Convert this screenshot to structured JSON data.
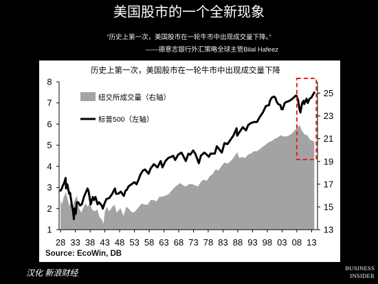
{
  "slide": {
    "title": "美国股市的一个全新现象",
    "quote": "“历史上第一次，美国股市在一轮牛市中出现成交量下降。”",
    "attribution": "——德意志银行外汇策略全球主管Bilal Hafeez",
    "footer_left": "汉化 新浪财经",
    "logo": {
      "line1": "BUSINESS",
      "line2": "INSIDER"
    }
  },
  "colors": {
    "background": "#000000",
    "text": "#ffffff",
    "panel": "#ffffff",
    "volume": "#a3a3a3",
    "index": "#000000",
    "highlight": "#e2231a"
  },
  "chart_data": {
    "type": "line",
    "title": "历史上第一次，美国股市在一轮牛市中出现成交量下降",
    "source": "Source: EcoWin, DB",
    "legend": "top-left",
    "grid": false,
    "xlim": [
      1927.5,
      2015
    ],
    "x_ticks": [
      1928,
      1933,
      1938,
      1943,
      1948,
      1953,
      1958,
      1963,
      1968,
      1973,
      1978,
      1983,
      1988,
      1993,
      1998,
      2003,
      2008,
      2013
    ],
    "x_tick_labels": [
      "28",
      "33",
      "38",
      "43",
      "48",
      "53",
      "58",
      "63",
      "68",
      "73",
      "78",
      "83",
      "88",
      "93",
      "98",
      "03",
      "08",
      "13"
    ],
    "y_left": {
      "lim": [
        1,
        8
      ],
      "ticks": [
        1,
        2,
        3,
        4,
        5,
        6,
        7,
        8
      ]
    },
    "y_right": {
      "lim": [
        13,
        26
      ],
      "ticks": [
        13,
        15,
        17,
        19,
        21,
        23,
        25
      ]
    },
    "series": [
      {
        "name": "纽交所成交量（右轴）",
        "kind": "area",
        "axis": "right",
        "color": "#a3a3a3",
        "points": [
          [
            1928.0,
            15.6
          ],
          [
            1928.5,
            15.2
          ],
          [
            1929.0,
            15.8
          ],
          [
            1929.8,
            16.3
          ],
          [
            1930.3,
            15.8
          ],
          [
            1930.9,
            15.1
          ],
          [
            1931.5,
            15.4
          ],
          [
            1932.0,
            14.8
          ],
          [
            1932.6,
            15.5
          ],
          [
            1933.5,
            16.0
          ],
          [
            1934.2,
            14.9
          ],
          [
            1935.0,
            14.5
          ],
          [
            1935.8,
            15.0
          ],
          [
            1936.5,
            15.3
          ],
          [
            1937.2,
            15.0
          ],
          [
            1937.9,
            15.4
          ],
          [
            1938.6,
            14.8
          ],
          [
            1939.5,
            14.6
          ],
          [
            1940.4,
            14.8
          ],
          [
            1941.2,
            14.1
          ],
          [
            1942.0,
            13.9
          ],
          [
            1942.5,
            13.5
          ],
          [
            1943.0,
            14.6
          ],
          [
            1943.6,
            15.0
          ],
          [
            1944.5,
            14.6
          ],
          [
            1945.5,
            15.0
          ],
          [
            1946.3,
            15.2
          ],
          [
            1947.0,
            14.5
          ],
          [
            1948.3,
            14.9
          ],
          [
            1949.3,
            14.2
          ],
          [
            1950.2,
            15.0
          ],
          [
            1950.9,
            14.9
          ],
          [
            1951.5,
            14.7
          ],
          [
            1952.4,
            14.5
          ],
          [
            1953.2,
            14.6
          ],
          [
            1954.5,
            15.0
          ],
          [
            1955.5,
            15.3
          ],
          [
            1956.5,
            15.2
          ],
          [
            1957.5,
            15.2
          ],
          [
            1958.5,
            15.6
          ],
          [
            1959.5,
            15.6
          ],
          [
            1960.5,
            15.5
          ],
          [
            1961.5,
            15.9
          ],
          [
            1962.5,
            15.9
          ],
          [
            1963.5,
            16.0
          ],
          [
            1964.5,
            16.1
          ],
          [
            1965.5,
            16.4
          ],
          [
            1966.5,
            16.7
          ],
          [
            1967.5,
            16.9
          ],
          [
            1968.5,
            17.1
          ],
          [
            1969.5,
            16.9
          ],
          [
            1970.4,
            16.8
          ],
          [
            1971.5,
            17.0
          ],
          [
            1972.5,
            17.0
          ],
          [
            1973.5,
            16.9
          ],
          [
            1974.5,
            16.8
          ],
          [
            1975.5,
            17.2
          ],
          [
            1976.5,
            17.4
          ],
          [
            1977.5,
            17.3
          ],
          [
            1978.5,
            17.7
          ],
          [
            1979.5,
            17.9
          ],
          [
            1980.5,
            18.3
          ],
          [
            1981.5,
            18.2
          ],
          [
            1982.5,
            18.6
          ],
          [
            1983.5,
            18.9
          ],
          [
            1984.5,
            18.8
          ],
          [
            1985.5,
            19.0
          ],
          [
            1986.5,
            19.3
          ],
          [
            1987.8,
            19.8
          ],
          [
            1988.5,
            19.3
          ],
          [
            1989.5,
            19.4
          ],
          [
            1990.5,
            19.3
          ],
          [
            1991.5,
            19.6
          ],
          [
            1992.5,
            19.7
          ],
          [
            1993.5,
            19.9
          ],
          [
            1994.5,
            19.9
          ],
          [
            1995.5,
            20.1
          ],
          [
            1996.5,
            20.3
          ],
          [
            1997.5,
            20.5
          ],
          [
            1998.5,
            20.7
          ],
          [
            1999.5,
            20.8
          ],
          [
            2000.5,
            21.0
          ],
          [
            2001.5,
            21.1
          ],
          [
            2002.5,
            21.3
          ],
          [
            2003.5,
            21.2
          ],
          [
            2004.5,
            21.2
          ],
          [
            2005.5,
            21.3
          ],
          [
            2006.5,
            21.5
          ],
          [
            2007.5,
            21.8
          ],
          [
            2008.3,
            22.0
          ],
          [
            2008.9,
            22.2
          ],
          [
            2009.5,
            21.8
          ],
          [
            2010.5,
            21.4
          ],
          [
            2011.5,
            21.3
          ],
          [
            2012.5,
            20.9
          ],
          [
            2013.5,
            20.8
          ],
          [
            2013.9,
            20.7
          ]
        ]
      },
      {
        "name": "标普500（左轴）",
        "kind": "line",
        "axis": "left",
        "color": "#000000",
        "points": [
          [
            1928.0,
            2.85
          ],
          [
            1928.4,
            2.95
          ],
          [
            1928.8,
            3.1
          ],
          [
            1929.2,
            3.2
          ],
          [
            1929.7,
            3.45
          ],
          [
            1929.85,
            2.95
          ],
          [
            1930.3,
            3.15
          ],
          [
            1930.9,
            2.7
          ],
          [
            1931.2,
            2.75
          ],
          [
            1931.9,
            2.1
          ],
          [
            1932.2,
            1.9
          ],
          [
            1932.5,
            1.5
          ],
          [
            1932.7,
            2.0
          ],
          [
            1933.1,
            1.75
          ],
          [
            1933.5,
            2.3
          ],
          [
            1934.0,
            2.3
          ],
          [
            1934.6,
            2.15
          ],
          [
            1935.2,
            2.2
          ],
          [
            1935.9,
            2.55
          ],
          [
            1936.5,
            2.75
          ],
          [
            1937.1,
            2.95
          ],
          [
            1937.5,
            2.8
          ],
          [
            1938.2,
            2.2
          ],
          [
            1938.9,
            2.55
          ],
          [
            1939.3,
            2.4
          ],
          [
            1939.8,
            2.55
          ],
          [
            1940.5,
            2.2
          ],
          [
            1941.0,
            2.3
          ],
          [
            1941.9,
            2.15
          ],
          [
            1942.3,
            2.0
          ],
          [
            1942.9,
            2.25
          ],
          [
            1943.5,
            2.45
          ],
          [
            1944.5,
            2.5
          ],
          [
            1945.5,
            2.7
          ],
          [
            1946.4,
            2.95
          ],
          [
            1946.8,
            2.7
          ],
          [
            1947.5,
            2.7
          ],
          [
            1948.4,
            2.8
          ],
          [
            1949.4,
            2.6
          ],
          [
            1950.0,
            2.85
          ],
          [
            1950.5,
            2.9
          ],
          [
            1951.0,
            3.05
          ],
          [
            1952.0,
            3.15
          ],
          [
            1953.0,
            3.25
          ],
          [
            1953.7,
            3.15
          ],
          [
            1954.5,
            3.4
          ],
          [
            1955.0,
            3.6
          ],
          [
            1955.9,
            3.8
          ],
          [
            1956.6,
            3.85
          ],
          [
            1957.8,
            3.65
          ],
          [
            1958.5,
            3.9
          ],
          [
            1959.6,
            4.1
          ],
          [
            1960.8,
            3.95
          ],
          [
            1961.9,
            4.25
          ],
          [
            1962.5,
            3.95
          ],
          [
            1963.5,
            4.25
          ],
          [
            1964.5,
            4.4
          ],
          [
            1965.5,
            4.45
          ],
          [
            1966.1,
            4.5
          ],
          [
            1966.8,
            4.3
          ],
          [
            1967.8,
            4.55
          ],
          [
            1968.9,
            4.65
          ],
          [
            1969.5,
            4.5
          ],
          [
            1970.4,
            4.25
          ],
          [
            1971.3,
            4.6
          ],
          [
            1971.9,
            4.55
          ],
          [
            1972.9,
            4.75
          ],
          [
            1973.6,
            4.6
          ],
          [
            1974.8,
            4.15
          ],
          [
            1975.5,
            4.5
          ],
          [
            1976.7,
            4.65
          ],
          [
            1977.9,
            4.5
          ],
          [
            1978.2,
            4.45
          ],
          [
            1978.8,
            4.6
          ],
          [
            1979.5,
            4.6
          ],
          [
            1980.2,
            4.6
          ],
          [
            1980.9,
            4.95
          ],
          [
            1981.5,
            4.85
          ],
          [
            1982.6,
            4.65
          ],
          [
            1983.5,
            5.1
          ],
          [
            1984.5,
            5.05
          ],
          [
            1985.5,
            5.25
          ],
          [
            1986.5,
            5.45
          ],
          [
            1987.6,
            5.8
          ],
          [
            1987.8,
            5.45
          ],
          [
            1988.5,
            5.6
          ],
          [
            1989.7,
            5.85
          ],
          [
            1990.8,
            5.7
          ],
          [
            1991.5,
            5.95
          ],
          [
            1992.5,
            6.05
          ],
          [
            1993.5,
            6.1
          ],
          [
            1994.5,
            6.1
          ],
          [
            1995.5,
            6.35
          ],
          [
            1996.5,
            6.55
          ],
          [
            1997.5,
            6.85
          ],
          [
            1998.6,
            6.9
          ],
          [
            1998.9,
            7.1
          ],
          [
            1999.5,
            7.25
          ],
          [
            2000.2,
            7.3
          ],
          [
            2000.7,
            7.25
          ],
          [
            2001.2,
            7.05
          ],
          [
            2001.7,
            6.95
          ],
          [
            2002.4,
            6.9
          ],
          [
            2002.8,
            6.7
          ],
          [
            2003.2,
            6.7
          ],
          [
            2003.9,
            7.0
          ],
          [
            2004.5,
            7.05
          ],
          [
            2005.5,
            7.1
          ],
          [
            2006.5,
            7.2
          ],
          [
            2007.4,
            7.32
          ],
          [
            2007.8,
            7.35
          ],
          [
            2008.4,
            7.15
          ],
          [
            2008.9,
            6.7
          ],
          [
            2009.2,
            6.55
          ],
          [
            2009.8,
            7.0
          ],
          [
            2010.3,
            7.1
          ],
          [
            2010.5,
            6.95
          ],
          [
            2011.3,
            7.2
          ],
          [
            2011.7,
            7.0
          ],
          [
            2012.3,
            7.2
          ],
          [
            2012.9,
            7.25
          ],
          [
            2013.5,
            7.4
          ],
          [
            2013.9,
            7.5
          ]
        ]
      }
    ],
    "highlight": {
      "style": "dashed-box",
      "color": "#e2231a",
      "x_range": [
        2008,
        2014.6
      ]
    }
  }
}
